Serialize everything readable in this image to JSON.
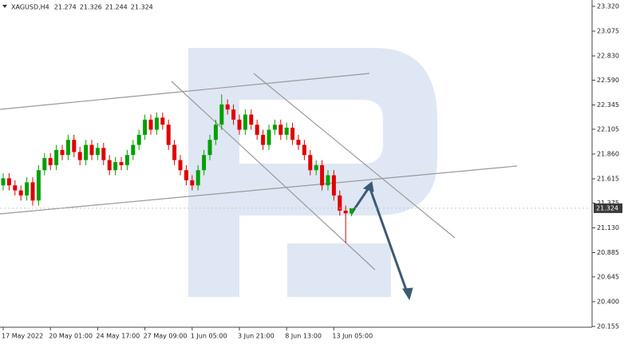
{
  "chart_data": {
    "type": "candlestick",
    "title": "XAGUSD,H4",
    "header_values": [
      21.274,
      21.326,
      21.244,
      21.324
    ],
    "current_price": 21.324,
    "up_color": "#00a000",
    "down_color": "#e00000",
    "ylim": [
      20.147,
      23.383
    ],
    "yticks": [
      {
        "value": 23.32,
        "label": "23.320"
      },
      23.075,
      {
        "value": 22.83,
        "label": "22.830"
      },
      {
        "value": 22.59,
        "label": "22.590"
      },
      22.345,
      22.105,
      {
        "value": 21.86,
        "label": "21.860"
      },
      21.615,
      21.375,
      {
        "value": 21.13,
        "label": "21.130"
      },
      20.885,
      20.645,
      {
        "value": 20.4,
        "label": "20.400"
      },
      20.155
    ],
    "xticks": [
      {
        "value": 0,
        "label": "17 May 2022"
      },
      {
        "value": 8,
        "label": "20 May 01:00"
      },
      {
        "value": 16,
        "label": "24 May 17:00"
      },
      {
        "value": 24,
        "label": "27 May 09:00"
      },
      {
        "value": 32,
        "label": "1 Jun 05:00"
      },
      {
        "value": 40,
        "label": "3 Jun 21:00"
      },
      {
        "value": 48,
        "label": "8 Jun 13:00"
      },
      {
        "value": 56,
        "label": "13 Jun 05:00"
      }
    ],
    "open": [
      21.55,
      21.62,
      21.55,
      21.5,
      21.45,
      21.58,
      21.4,
      21.7,
      21.82,
      21.75,
      21.9,
      21.85,
      22.0,
      21.88,
      21.8,
      21.95,
      21.85,
      21.92,
      21.8,
      21.7,
      21.78,
      21.75,
      21.85,
      21.95,
      22.05,
      22.2,
      22.1,
      22.22,
      22.15,
      21.95,
      21.8,
      21.7,
      21.6,
      21.55,
      21.7,
      21.85,
      22.0,
      22.15,
      22.35,
      22.3,
      22.2,
      22.1,
      22.25,
      22.15,
      22.05,
      21.95,
      22.1,
      22.15,
      22.05,
      22.12,
      22.0,
      21.95,
      21.85,
      21.7,
      21.75,
      21.55,
      21.65,
      21.45,
      21.3,
      21.274
    ],
    "high": [
      21.67,
      21.67,
      21.6,
      21.55,
      21.63,
      21.63,
      21.75,
      21.87,
      21.87,
      21.95,
      21.95,
      22.05,
      22.05,
      21.93,
      22.0,
      22.0,
      21.97,
      21.97,
      21.85,
      21.83,
      21.83,
      21.9,
      22.0,
      22.1,
      22.25,
      22.25,
      22.27,
      22.27,
      22.2,
      22.0,
      21.85,
      21.75,
      21.65,
      21.75,
      21.9,
      22.05,
      22.2,
      22.45,
      22.4,
      22.35,
      22.25,
      22.3,
      22.3,
      22.2,
      22.1,
      22.15,
      22.2,
      22.2,
      22.17,
      22.17,
      22.05,
      22.0,
      21.9,
      21.8,
      21.8,
      21.7,
      21.7,
      21.5,
      21.35,
      21.326
    ],
    "low": [
      21.5,
      21.5,
      21.45,
      21.4,
      21.4,
      21.35,
      21.35,
      21.65,
      21.7,
      21.7,
      21.8,
      21.8,
      21.83,
      21.75,
      21.75,
      21.8,
      21.8,
      21.75,
      21.65,
      21.65,
      21.7,
      21.7,
      21.8,
      21.9,
      22.0,
      22.05,
      22.05,
      22.1,
      21.9,
      21.75,
      21.65,
      21.55,
      21.5,
      21.5,
      21.65,
      21.8,
      21.95,
      22.1,
      22.25,
      22.15,
      22.05,
      22.05,
      22.1,
      22.0,
      21.9,
      21.9,
      22.05,
      22.0,
      22.0,
      21.95,
      21.9,
      21.8,
      21.65,
      21.65,
      21.5,
      21.5,
      21.4,
      21.25,
      20.98,
      21.244
    ],
    "close": [
      21.62,
      21.55,
      21.5,
      21.45,
      21.58,
      21.4,
      21.7,
      21.82,
      21.75,
      21.9,
      21.85,
      22.0,
      21.88,
      21.8,
      21.95,
      21.85,
      21.92,
      21.8,
      21.7,
      21.78,
      21.75,
      21.85,
      21.95,
      22.05,
      22.2,
      22.1,
      22.22,
      22.15,
      21.95,
      21.8,
      21.7,
      21.6,
      21.55,
      21.7,
      21.85,
      22.0,
      22.15,
      22.35,
      22.3,
      22.2,
      22.1,
      22.25,
      22.15,
      22.05,
      21.95,
      22.1,
      22.15,
      22.05,
      22.12,
      22.0,
      21.95,
      21.85,
      21.7,
      21.75,
      21.55,
      21.65,
      21.45,
      21.3,
      21.274,
      21.324
    ]
  }
}
